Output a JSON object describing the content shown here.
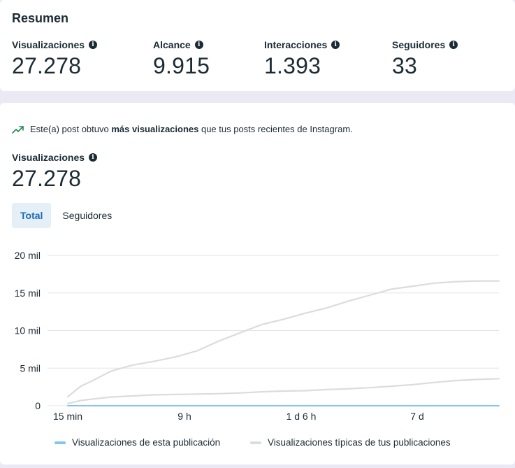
{
  "summary": {
    "title": "Resumen",
    "metrics": [
      {
        "label": "Visualizaciones",
        "value": "27.278"
      },
      {
        "label": "Alcance",
        "value": "9.915"
      },
      {
        "label": "Interacciones",
        "value": "1.393"
      },
      {
        "label": "Seguidores",
        "value": "33"
      }
    ]
  },
  "insight": {
    "prefix": "Este(a) post obtuvo ",
    "highlight": "más visualizaciones",
    "suffix": " que tus posts recientes de Instagram.",
    "icon": "trending-up-icon"
  },
  "detail": {
    "metric_label": "Visualizaciones",
    "metric_value": "27.278"
  },
  "tabs": [
    {
      "label": "Total",
      "active": true
    },
    {
      "label": "Seguidores",
      "active": false
    }
  ],
  "colors": {
    "this_post": "#84c5ee",
    "typical": "#dcdcdc",
    "active_tab_bg": "#e5eff7",
    "active_tab_text": "#1b6bb0"
  },
  "chart_data": {
    "type": "line",
    "x_ticks": [
      "15 min",
      "9 h",
      "1 d 6 h",
      "7 d"
    ],
    "y_ticks": [
      "20 mil",
      "15 mil",
      "10 mil",
      "5 mil",
      "0"
    ],
    "ylim": [
      0,
      20000
    ],
    "x_positions": [
      0,
      0.03,
      0.06,
      0.1,
      0.15,
      0.2,
      0.25,
      0.3,
      0.35,
      0.4,
      0.45,
      0.5,
      0.55,
      0.6,
      0.65,
      0.7,
      0.75,
      0.8,
      0.85,
      0.9,
      0.95,
      1.0
    ],
    "series": [
      {
        "name": "Visualizaciones de esta publicación",
        "values": [
          0,
          0,
          0,
          0,
          0,
          0,
          0,
          0,
          0,
          0,
          0,
          0,
          0,
          0,
          0,
          0,
          0,
          0,
          0,
          0,
          0,
          0
        ]
      },
      {
        "name": "Visualizaciones típicas de tus publicaciones",
        "values": [
          1200,
          2600,
          3400,
          4600,
          5400,
          5900,
          6500,
          7300,
          8600,
          9700,
          10800,
          11500,
          12300,
          13000,
          13900,
          14700,
          15500,
          15900,
          16300,
          16500,
          16600,
          16600
        ]
      },
      {
        "name": "",
        "values": [
          300,
          700,
          900,
          1150,
          1300,
          1450,
          1500,
          1550,
          1600,
          1700,
          1850,
          1950,
          2000,
          2150,
          2250,
          2400,
          2600,
          2800,
          3100,
          3350,
          3500,
          3600
        ]
      }
    ]
  }
}
